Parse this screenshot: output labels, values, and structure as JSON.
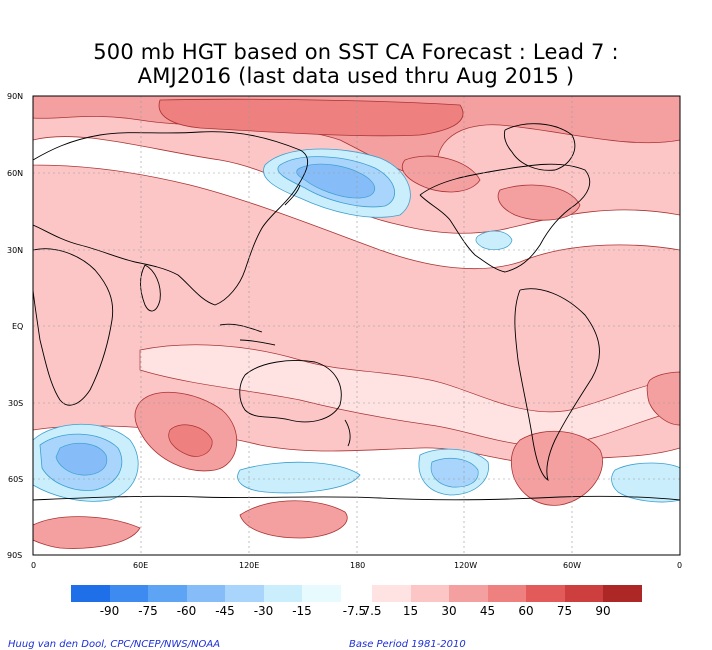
{
  "title": {
    "line1": "500 mb HGT based on SST CA Forecast : Lead 7 :",
    "line2": "AMJ2016 (last data used thru Aug 2015 )"
  },
  "map": {
    "y_ticks": [
      "90N",
      "60N",
      "30N",
      "EQ",
      "30S",
      "60S",
      "90S"
    ],
    "x_ticks": [
      "0",
      "60E",
      "120E",
      "180",
      "120W",
      "60W",
      "0"
    ],
    "contour_levels": [
      -90,
      -75,
      -60,
      -45,
      -30,
      -15,
      -7.5,
      7.5,
      15,
      30,
      45,
      60,
      75,
      90
    ]
  },
  "legend": {
    "labels": [
      "-90",
      "-75",
      "-60",
      "-45",
      "-30",
      "-15",
      "-7.5",
      "7.5",
      "15",
      "30",
      "45",
      "60",
      "75",
      "90"
    ],
    "colors": [
      "#1f6fe8",
      "#3d8af0",
      "#5ea4f4",
      "#86bcf8",
      "#a9d4fb",
      "#cbeefc",
      "#e7fbff",
      "#ffe3e3",
      "#fcc6c6",
      "#f4a0a0",
      "#ee8080",
      "#e35a5a",
      "#cd3f3f",
      "#ad2727"
    ]
  },
  "credits": {
    "author": "Huug van den Dool, CPC/NCEP/NWS/NOAA",
    "base_period": "Base Period 1981-2010"
  }
}
